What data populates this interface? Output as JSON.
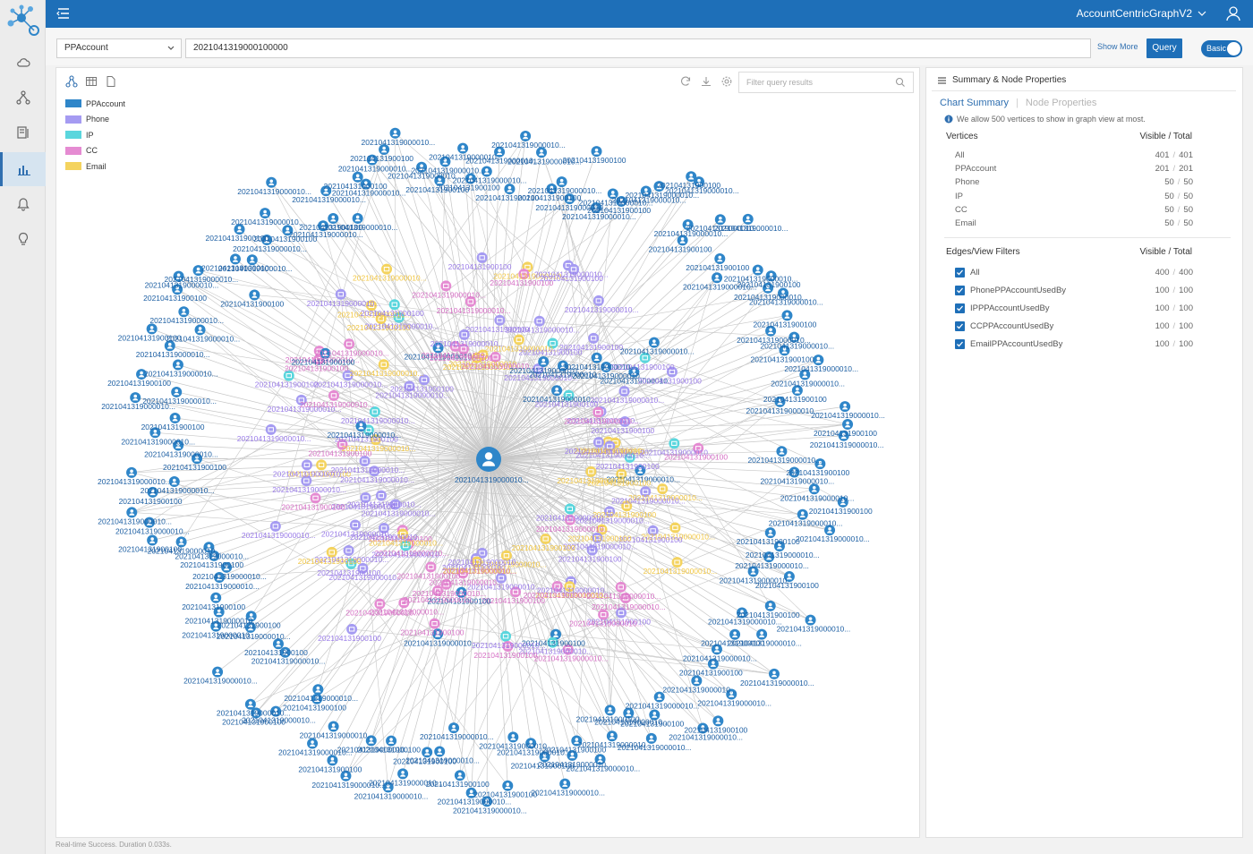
{
  "header": {
    "graph_name": "AccountCentricGraphV2"
  },
  "nav": {
    "items": [
      "cloud-icon",
      "graph-icon",
      "book-icon",
      "chart-icon",
      "bell-icon",
      "lightbulb-icon"
    ],
    "active_index": 3
  },
  "query": {
    "vertex_type": "PPAccount",
    "value": "2021041319000100000",
    "show_more_label": "Show More",
    "query_label": "Query",
    "mode_label": "Basic"
  },
  "graph": {
    "filter_placeholder": "Filter query results",
    "legend": [
      {
        "label": "PPAccount",
        "color": "#2f86c9"
      },
      {
        "label": "Phone",
        "color": "#a59bf2"
      },
      {
        "label": "IP",
        "color": "#5ad6dd"
      },
      {
        "label": "CC",
        "color": "#e58bd2"
      },
      {
        "label": "Email",
        "color": "#f4d35e"
      }
    ],
    "node_label": "2021041319000010...",
    "short_label": "202104131900100",
    "label_colors": {
      "account": "#1d5fa3",
      "phone": "#9a7ce8",
      "cc": "#d56fc4",
      "email": "#f2c744"
    },
    "edge_color": "#c7c7c7"
  },
  "summary": {
    "header": "Summary & Node Properties",
    "tab_summary": "Chart Summary",
    "tab_separator": "|",
    "tab_properties": "Node Properties",
    "info": "We allow 500 vertices to show in graph view at most.",
    "vertices_title": "Vertices",
    "cols_label": "Visible  /  Total",
    "vertices": [
      {
        "name": "All",
        "visible": "401",
        "total": "401"
      },
      {
        "name": "PPAccount",
        "visible": "201",
        "total": "201"
      },
      {
        "name": "Phone",
        "visible": "50",
        "total": "50"
      },
      {
        "name": "IP",
        "visible": "50",
        "total": "50"
      },
      {
        "name": "CC",
        "visible": "50",
        "total": "50"
      },
      {
        "name": "Email",
        "visible": "50",
        "total": "50"
      }
    ],
    "edges_title": "Edges/View Filters",
    "edges": [
      {
        "name": "All",
        "visible": "400",
        "total": "400"
      },
      {
        "name": "PhonePPAccountUsedBy",
        "visible": "100",
        "total": "100"
      },
      {
        "name": "IPPPAccountUsedBy",
        "visible": "100",
        "total": "100"
      },
      {
        "name": "CCPPAccountUsedBy",
        "visible": "100",
        "total": "100"
      },
      {
        "name": "EmailPPAccountUsedBy",
        "visible": "100",
        "total": "100"
      }
    ]
  },
  "status": {
    "text": "Real-time Success. Duration 0.033s."
  }
}
